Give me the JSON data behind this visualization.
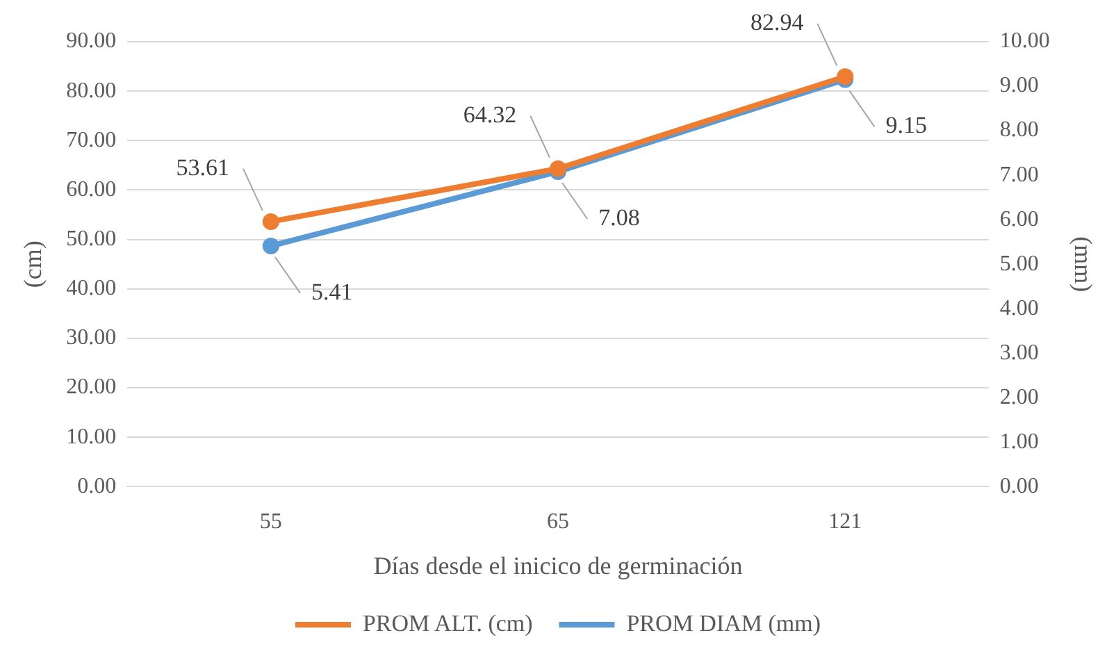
{
  "chart_data": {
    "type": "line",
    "xlabel": "Días desde el inicico de germinación",
    "ylabel": "(cm)",
    "y2label": "(mm)",
    "categories": [
      "55",
      "65",
      "121"
    ],
    "series": [
      {
        "name": "PROM ALT. (cm)",
        "color": "#ed7d31",
        "values": [
          53.61,
          64.32,
          82.94
        ]
      },
      {
        "name": "PROM DIAM (mm)",
        "color": "#5b9bd5",
        "values": [
          5.41,
          7.08,
          9.15
        ],
        "axis": "y2"
      }
    ],
    "ylim": [
      0,
      90
    ],
    "yticks": [
      {
        "value": 0,
        "label": "0.00"
      },
      {
        "value": 10,
        "label": "10.00"
      },
      {
        "value": 20,
        "label": "20.00"
      },
      {
        "value": 30,
        "label": "30.00"
      },
      {
        "value": 40,
        "label": "40.00"
      },
      {
        "value": 50,
        "label": "50.00"
      },
      {
        "value": 60,
        "label": "60.00"
      },
      {
        "value": 70,
        "label": "70.00"
      },
      {
        "value": 80,
        "label": "80.00"
      },
      {
        "value": 90,
        "label": "90.00"
      }
    ],
    "y2lim": [
      0,
      10
    ],
    "y2ticks": [
      {
        "value": 0,
        "label": "0.00"
      },
      {
        "value": 1,
        "label": "1.00"
      },
      {
        "value": 2,
        "label": "2.00"
      },
      {
        "value": 3,
        "label": "3.00"
      },
      {
        "value": 4,
        "label": "4.00"
      },
      {
        "value": 5,
        "label": "5.00"
      },
      {
        "value": 6,
        "label": "6.00"
      },
      {
        "value": 7,
        "label": "7.00"
      },
      {
        "value": 8,
        "label": "8.00"
      },
      {
        "value": 9,
        "label": "9.00"
      },
      {
        "value": 10,
        "label": "10.00"
      }
    ],
    "grid": "y",
    "legend": "bottom",
    "marker": "circle",
    "line_style": "solid",
    "data_labels": true
  }
}
